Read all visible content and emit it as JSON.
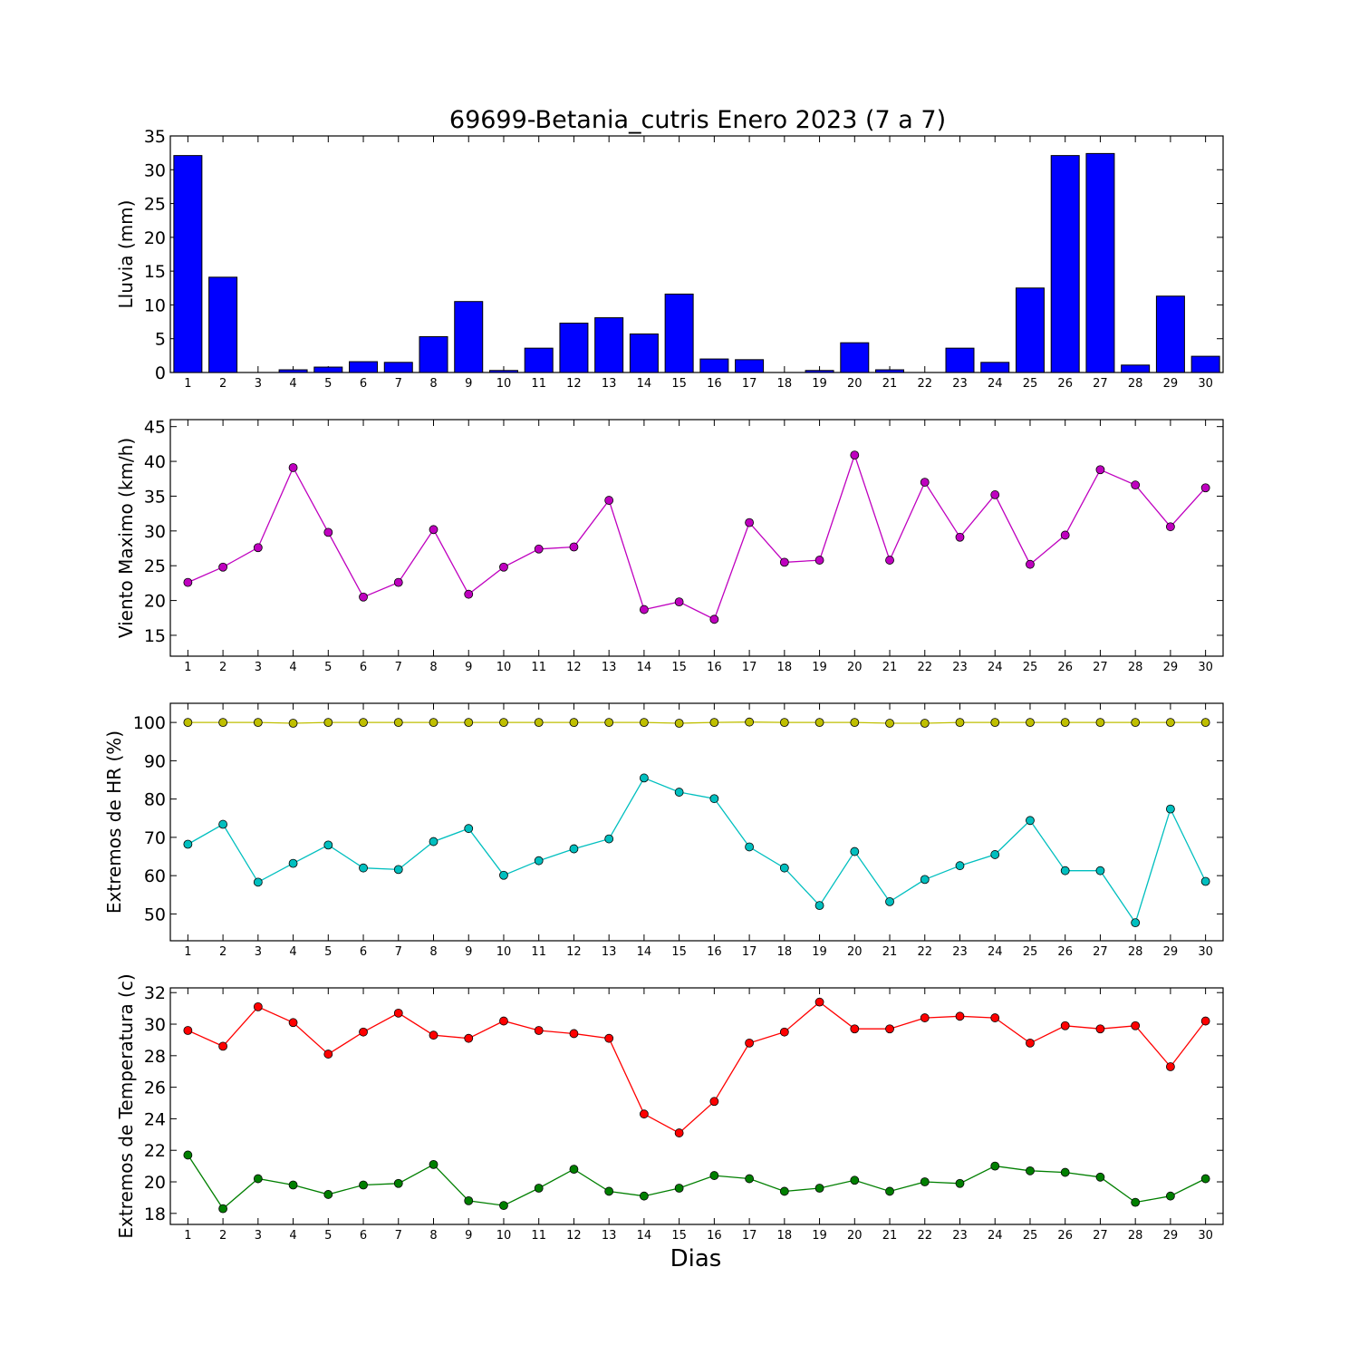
{
  "chart_data": {
    "type": "multi-panel",
    "title": "69699-Betania_cutris Enero 2023  (7 a 7)",
    "xlabel": "Dias",
    "categories": [
      1,
      2,
      3,
      4,
      5,
      6,
      7,
      8,
      9,
      10,
      11,
      12,
      13,
      14,
      15,
      16,
      17,
      18,
      19,
      20,
      21,
      22,
      23,
      24,
      25,
      26,
      27,
      28,
      29,
      30
    ],
    "panels": [
      {
        "type": "bar",
        "ylabel": "Lluvia (mm)",
        "ylim": [
          0,
          35
        ],
        "yticks": [
          0,
          5,
          10,
          15,
          20,
          25,
          30,
          35
        ],
        "series": [
          {
            "color": "#0000ff",
            "values": [
              32.1,
              14.1,
              0.0,
              0.4,
              0.8,
              1.6,
              1.5,
              5.3,
              10.5,
              0.3,
              3.6,
              7.3,
              8.1,
              5.7,
              11.6,
              2.0,
              1.9,
              0.0,
              0.3,
              4.4,
              0.4,
              0.0,
              3.6,
              1.5,
              12.5,
              32.1,
              32.4,
              1.1,
              11.3,
              2.4
            ]
          }
        ]
      },
      {
        "type": "line",
        "ylabel": "Viento Maximo (km/h)",
        "ylim": [
          12,
          46
        ],
        "yticks": [
          15,
          20,
          25,
          30,
          35,
          40,
          45
        ],
        "series": [
          {
            "color": "#bf00bf",
            "values": [
              22.6,
              24.8,
              27.6,
              39.1,
              29.8,
              20.5,
              22.6,
              30.2,
              20.9,
              24.8,
              27.4,
              27.7,
              34.4,
              18.7,
              19.8,
              17.3,
              31.2,
              25.5,
              25.8,
              40.9,
              25.8,
              37.0,
              29.1,
              35.2,
              25.2,
              29.4,
              38.8,
              36.6,
              30.6,
              36.2
            ]
          }
        ]
      },
      {
        "type": "line",
        "ylabel": "Extremos de HR (%)",
        "ylim": [
          43,
          105
        ],
        "yticks": [
          50,
          60,
          70,
          80,
          90,
          100
        ],
        "series": [
          {
            "color": "#bfbf00",
            "values": [
              100,
              100,
              100,
              99.8,
              100,
              100,
              100,
              100,
              100,
              100,
              100,
              100,
              100,
              100,
              99.8,
              100,
              100.1,
              100,
              100,
              100,
              99.8,
              99.8,
              100,
              100,
              100,
              100,
              100,
              100,
              100,
              100
            ]
          },
          {
            "color": "#00bfbf",
            "values": [
              68.2,
              73.4,
              58.3,
              63.2,
              68.0,
              62.0,
              61.6,
              68.9,
              72.3,
              60.1,
              63.9,
              67.0,
              69.6,
              85.5,
              81.8,
              80.1,
              67.5,
              62.0,
              52.2,
              66.3,
              53.2,
              59.0,
              62.6,
              65.5,
              74.4,
              61.3,
              61.3,
              47.7,
              77.4,
              58.5
            ]
          }
        ]
      },
      {
        "type": "line",
        "ylabel": "Extremos de Temperatura (c)",
        "ylim": [
          17.3,
          32.3
        ],
        "yticks": [
          18,
          20,
          22,
          24,
          26,
          28,
          30,
          32
        ],
        "series": [
          {
            "color": "#ff0000",
            "values": [
              29.6,
              28.6,
              31.1,
              30.1,
              28.1,
              29.5,
              30.7,
              29.3,
              29.1,
              30.2,
              29.6,
              29.4,
              29.1,
              24.3,
              23.1,
              25.1,
              28.8,
              29.5,
              31.4,
              29.7,
              29.7,
              30.4,
              30.5,
              30.4,
              28.8,
              29.9,
              29.7,
              29.9,
              27.3,
              30.2
            ]
          },
          {
            "color": "#007f00",
            "values": [
              21.7,
              18.3,
              20.2,
              19.8,
              19.2,
              19.8,
              19.9,
              21.1,
              18.8,
              18.5,
              19.6,
              20.8,
              19.4,
              19.1,
              19.6,
              20.4,
              20.2,
              19.4,
              19.6,
              20.1,
              19.4,
              20.0,
              19.9,
              21.0,
              20.7,
              20.6,
              20.3,
              18.7,
              19.1,
              20.2
            ]
          }
        ]
      }
    ]
  }
}
